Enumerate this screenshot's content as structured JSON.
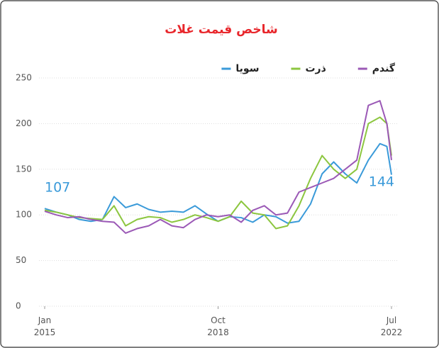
{
  "chart_data": {
    "type": "line",
    "title": "شاخص قیمت غلات",
    "x": [
      2015,
      2015.25,
      2015.5,
      2015.75,
      2016,
      2016.25,
      2016.5,
      2016.75,
      2017,
      2017.25,
      2017.5,
      2017.75,
      2018,
      2018.25,
      2018.5,
      2018.75,
      2019,
      2019.25,
      2019.5,
      2019.75,
      2020,
      2020.25,
      2020.5,
      2020.75,
      2021,
      2021.25,
      2021.5,
      2021.75,
      2022,
      2022.25,
      2022.4,
      2022.5
    ],
    "series": [
      {
        "name": "سویا",
        "color": "#3a9ad9",
        "values": [
          107,
          103,
          100,
          95,
          93,
          95,
          120,
          108,
          112,
          106,
          103,
          104,
          103,
          110,
          101,
          93,
          98,
          97,
          92,
          100,
          98,
          91,
          93,
          112,
          145,
          158,
          145,
          135,
          160,
          178,
          175,
          144
        ]
      },
      {
        "name": "ذرت",
        "color": "#8cc63f",
        "values": [
          105,
          103,
          100,
          97,
          96,
          95,
          110,
          88,
          95,
          98,
          97,
          92,
          95,
          100,
          97,
          93,
          98,
          115,
          102,
          100,
          85,
          88,
          110,
          140,
          165,
          150,
          140,
          150,
          200,
          207,
          200,
          165
        ]
      },
      {
        "name": "گندم",
        "color": "#9b59b6",
        "values": [
          104,
          100,
          97,
          98,
          95,
          93,
          92,
          80,
          85,
          88,
          95,
          88,
          86,
          95,
          100,
          98,
          100,
          92,
          105,
          110,
          100,
          102,
          125,
          130,
          135,
          140,
          150,
          160,
          220,
          225,
          200,
          160
        ]
      }
    ],
    "annotations": [
      {
        "text": "107",
        "color": "#3a9ad9"
      },
      {
        "text": "144",
        "color": "#3a9ad9"
      }
    ],
    "xlim": [
      2015,
      2022.5
    ],
    "xticks": [
      {
        "value": 2015,
        "label": "Jan 2015"
      },
      {
        "value": 2018.75,
        "label": "Oct 2018"
      },
      {
        "value": 2022.5,
        "label": "Jul 2022"
      }
    ],
    "ylim": [
      0,
      250
    ],
    "yticks": [
      0,
      50,
      100,
      150,
      200,
      250
    ],
    "grid": true,
    "title_color": "#e8262b"
  }
}
